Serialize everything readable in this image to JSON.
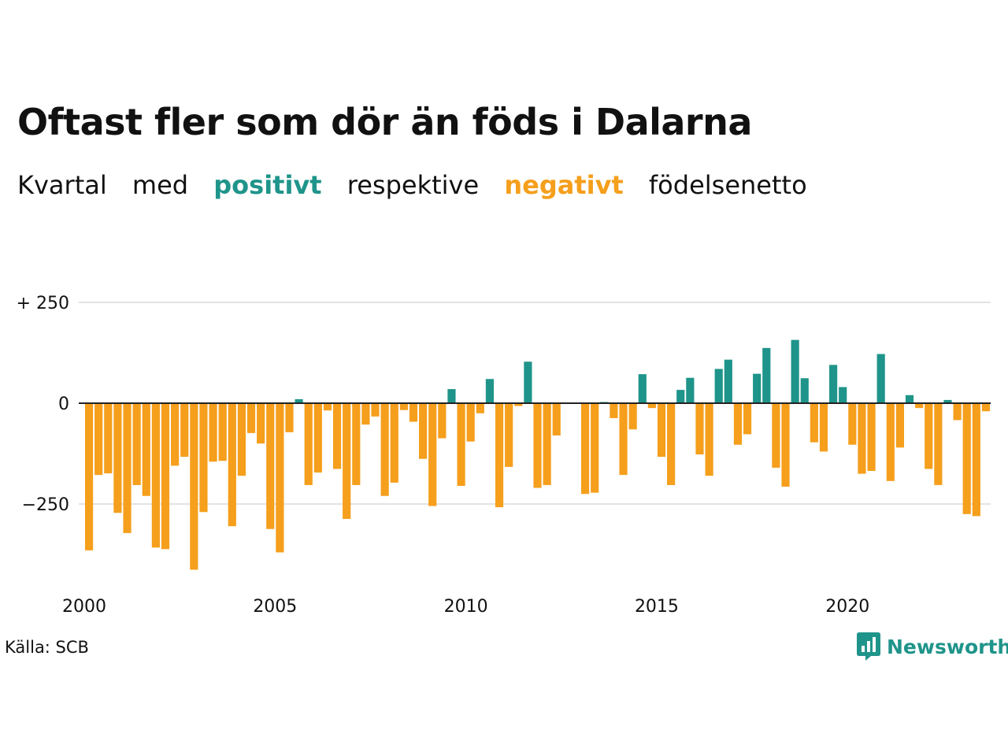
{
  "title": "Oftast fler som dör än föds i Dalarna",
  "subtitle": {
    "part1": "Kvartal",
    "part2": "med",
    "positive": "positivt",
    "part3": "respektive",
    "negative": "negativt",
    "part4": "födelsenetto"
  },
  "colors": {
    "positive": "#1f948a",
    "negative": "#f59f1c",
    "grid": "#e3e3e3",
    "zero_line": "#222222",
    "text": "#111111"
  },
  "source": "Källa: SCB",
  "brand": {
    "name": "Newsworthy",
    "icon": "newsworthy-chart-bubble-icon",
    "color": "#1f948a"
  },
  "chart_data": {
    "type": "bar",
    "x_start": "2000 Q1",
    "period": "quarter",
    "xticks": [
      "2000",
      "2005",
      "2010",
      "2015",
      "2020"
    ],
    "yticks": [
      250,
      0,
      -250
    ],
    "ytick_labels": [
      "+ 250",
      "0",
      "−250"
    ],
    "ylim": [
      -470,
      270
    ],
    "grid": true,
    "values": [
      -365,
      -178,
      -174,
      -272,
      -322,
      -203,
      -230,
      -358,
      -362,
      -155,
      -133,
      -413,
      -270,
      -145,
      -143,
      -305,
      -180,
      -74,
      -100,
      -312,
      -370,
      -72,
      10,
      -203,
      -172,
      -18,
      -163,
      -287,
      -203,
      -53,
      -33,
      -230,
      -197,
      -17,
      -46,
      -138,
      -255,
      -87,
      35,
      -205,
      -95,
      -25,
      60,
      -258,
      -158,
      -7,
      103,
      -210,
      -203,
      -80,
      0,
      0,
      -225,
      -222,
      3,
      -37,
      -178,
      -65,
      72,
      -12,
      -133,
      -203,
      33,
      63,
      -127,
      -180,
      85,
      108,
      -103,
      -77,
      73,
      137,
      -160,
      -207,
      157,
      62,
      -97,
      -120,
      95,
      40,
      -103,
      -175,
      -168,
      122,
      -193,
      -110,
      20,
      -12,
      -163,
      -203,
      8,
      -42,
      -275,
      -280,
      -20
    ]
  }
}
